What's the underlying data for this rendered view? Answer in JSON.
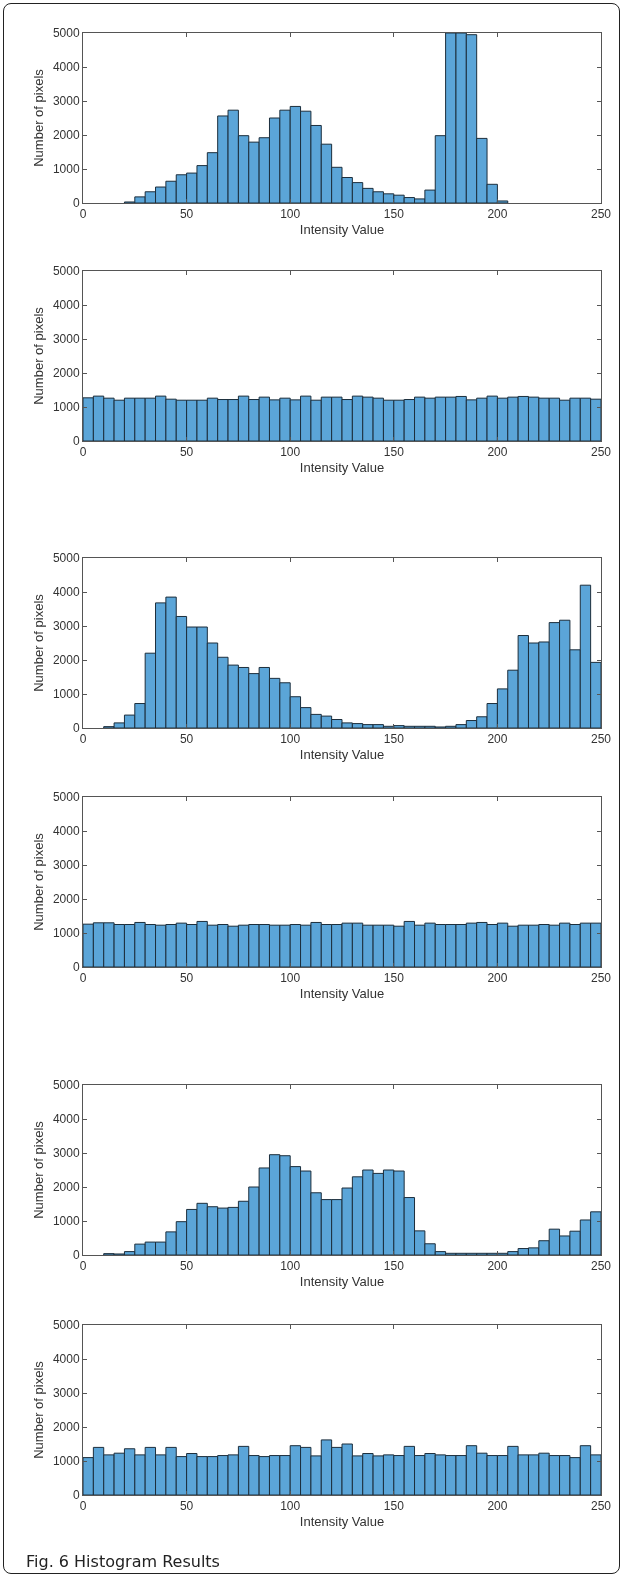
{
  "chart_data": [
    {
      "type": "histogram",
      "xlabel": "Intensity Value",
      "ylabel": "Number of pixels",
      "color": "#5ba5d8",
      "xlim": [
        0,
        250
      ],
      "xticks": [
        0,
        50,
        100,
        150,
        200,
        250
      ],
      "ylim": [
        0,
        5000
      ],
      "yticks": [
        0,
        1000,
        2000,
        3000,
        4000,
        5000
      ],
      "grid": false,
      "bins": [
        0,
        5,
        10,
        15,
        20,
        25,
        30,
        35,
        40,
        45,
        50,
        55,
        60,
        65,
        70,
        75,
        80,
        85,
        90,
        95,
        100,
        105,
        110,
        115,
        120,
        125,
        130,
        135,
        140,
        145,
        150,
        155,
        160,
        165,
        170,
        175,
        180,
        185,
        190,
        195,
        200,
        205,
        210,
        215,
        220,
        225,
        230,
        235,
        240,
        245,
        250
      ],
      "values": [
        0,
        0,
        0,
        0,
        30,
        180,
        330,
        470,
        640,
        830,
        880,
        1100,
        1480,
        2560,
        2730,
        1980,
        1790,
        1920,
        2500,
        2730,
        2840,
        2700,
        2280,
        1730,
        1050,
        750,
        600,
        430,
        330,
        270,
        230,
        160,
        120,
        380,
        1980,
        5000,
        5000,
        4950,
        1900,
        550,
        60,
        0,
        0,
        0,
        0,
        0,
        0,
        0,
        0,
        0
      ]
    },
    {
      "type": "histogram",
      "xlabel": "Intensity Value",
      "ylabel": "Number of pixels",
      "color": "#5ba5d8",
      "xlim": [
        0,
        250
      ],
      "xticks": [
        0,
        50,
        100,
        150,
        200,
        250
      ],
      "ylim": [
        0,
        5000
      ],
      "yticks": [
        0,
        1000,
        2000,
        3000,
        4000,
        5000
      ],
      "grid": false,
      "bins": [
        0,
        5,
        10,
        15,
        20,
        25,
        30,
        35,
        40,
        45,
        50,
        55,
        60,
        65,
        70,
        75,
        80,
        85,
        90,
        95,
        100,
        105,
        110,
        115,
        120,
        125,
        130,
        135,
        140,
        145,
        150,
        155,
        160,
        165,
        170,
        175,
        180,
        185,
        190,
        195,
        200,
        205,
        210,
        215,
        220,
        225,
        230,
        235,
        240,
        245,
        250
      ],
      "values": [
        1270,
        1320,
        1260,
        1200,
        1260,
        1260,
        1260,
        1320,
        1230,
        1200,
        1200,
        1200,
        1260,
        1220,
        1220,
        1320,
        1220,
        1290,
        1210,
        1260,
        1210,
        1320,
        1200,
        1290,
        1290,
        1220,
        1320,
        1290,
        1260,
        1200,
        1200,
        1220,
        1290,
        1260,
        1290,
        1290,
        1310,
        1210,
        1260,
        1320,
        1260,
        1290,
        1310,
        1290,
        1260,
        1260,
        1200,
        1260,
        1260,
        1230
      ]
    },
    {
      "type": "histogram",
      "xlabel": "Intensity Value",
      "ylabel": "Number of pixels",
      "color": "#5ba5d8",
      "xlim": [
        0,
        250
      ],
      "xticks": [
        0,
        50,
        100,
        150,
        200,
        250
      ],
      "ylim": [
        0,
        5000
      ],
      "yticks": [
        0,
        1000,
        2000,
        3000,
        4000,
        5000
      ],
      "grid": false,
      "bins": [
        0,
        5,
        10,
        15,
        20,
        25,
        30,
        35,
        40,
        45,
        50,
        55,
        60,
        65,
        70,
        75,
        80,
        85,
        90,
        95,
        100,
        105,
        110,
        115,
        120,
        125,
        130,
        135,
        140,
        145,
        150,
        155,
        160,
        165,
        170,
        175,
        180,
        185,
        190,
        195,
        200,
        205,
        210,
        215,
        220,
        225,
        230,
        235,
        240,
        245,
        250
      ],
      "values": [
        0,
        0,
        40,
        150,
        380,
        720,
        2200,
        3680,
        3850,
        3280,
        2970,
        2970,
        2500,
        2080,
        1850,
        1780,
        1600,
        1780,
        1460,
        1330,
        920,
        600,
        400,
        350,
        250,
        150,
        130,
        100,
        100,
        50,
        70,
        50,
        50,
        50,
        30,
        50,
        100,
        220,
        330,
        720,
        1150,
        1700,
        2720,
        2500,
        2530,
        3100,
        3170,
        2300,
        4200,
        1930
      ]
    },
    {
      "type": "histogram",
      "xlabel": "Intensity Value",
      "ylabel": "Number of pixels",
      "color": "#5ba5d8",
      "xlim": [
        0,
        250
      ],
      "xticks": [
        0,
        50,
        100,
        150,
        200,
        250
      ],
      "ylim": [
        0,
        5000
      ],
      "yticks": [
        0,
        1000,
        2000,
        3000,
        4000,
        5000
      ],
      "grid": false,
      "bins": [
        0,
        5,
        10,
        15,
        20,
        25,
        30,
        35,
        40,
        45,
        50,
        55,
        60,
        65,
        70,
        75,
        80,
        85,
        90,
        95,
        100,
        105,
        110,
        115,
        120,
        125,
        130,
        135,
        140,
        145,
        150,
        155,
        160,
        165,
        170,
        175,
        180,
        185,
        190,
        195,
        200,
        205,
        210,
        215,
        220,
        225,
        230,
        235,
        240,
        245,
        250
      ],
      "values": [
        1260,
        1300,
        1300,
        1250,
        1250,
        1310,
        1250,
        1230,
        1250,
        1290,
        1250,
        1340,
        1230,
        1250,
        1200,
        1230,
        1250,
        1250,
        1230,
        1230,
        1250,
        1230,
        1310,
        1250,
        1250,
        1290,
        1290,
        1230,
        1230,
        1230,
        1200,
        1340,
        1230,
        1290,
        1250,
        1250,
        1250,
        1290,
        1310,
        1250,
        1290,
        1200,
        1230,
        1230,
        1250,
        1230,
        1290,
        1250,
        1290,
        1290
      ]
    },
    {
      "type": "histogram",
      "xlabel": "Intensity Value",
      "ylabel": "Number of pixels",
      "color": "#5ba5d8",
      "xlim": [
        0,
        250
      ],
      "xticks": [
        0,
        50,
        100,
        150,
        200,
        250
      ],
      "ylim": [
        0,
        5000
      ],
      "yticks": [
        0,
        1000,
        2000,
        3000,
        4000,
        5000
      ],
      "grid": false,
      "bins": [
        0,
        5,
        10,
        15,
        20,
        25,
        30,
        35,
        40,
        45,
        50,
        55,
        60,
        65,
        70,
        75,
        80,
        85,
        90,
        95,
        100,
        105,
        110,
        115,
        120,
        125,
        130,
        135,
        140,
        145,
        150,
        155,
        160,
        165,
        170,
        175,
        180,
        185,
        190,
        195,
        200,
        205,
        210,
        215,
        220,
        225,
        230,
        235,
        240,
        245,
        250
      ],
      "values": [
        0,
        0,
        40,
        30,
        100,
        320,
        380,
        380,
        680,
        980,
        1340,
        1520,
        1420,
        1380,
        1400,
        1580,
        2000,
        2560,
        2950,
        2920,
        2600,
        2470,
        1830,
        1630,
        1630,
        1970,
        2300,
        2500,
        2400,
        2500,
        2470,
        1690,
        710,
        330,
        100,
        50,
        50,
        50,
        50,
        50,
        50,
        100,
        190,
        210,
        420,
        760,
        560,
        700,
        1030,
        1270
      ]
    },
    {
      "type": "histogram",
      "xlabel": "Intensity Value",
      "ylabel": "Number of pixels",
      "color": "#5ba5d8",
      "xlim": [
        0,
        250
      ],
      "xticks": [
        0,
        50,
        100,
        150,
        200,
        250
      ],
      "ylim": [
        0,
        5000
      ],
      "yticks": [
        0,
        1000,
        2000,
        3000,
        4000,
        5000
      ],
      "grid": false,
      "bins": [
        0,
        5,
        10,
        15,
        20,
        25,
        30,
        35,
        40,
        45,
        50,
        55,
        60,
        65,
        70,
        75,
        80,
        85,
        90,
        95,
        100,
        105,
        110,
        115,
        120,
        125,
        130,
        135,
        140,
        145,
        150,
        155,
        160,
        165,
        170,
        175,
        180,
        185,
        190,
        195,
        200,
        205,
        210,
        215,
        220,
        225,
        230,
        235,
        240,
        245,
        250
      ],
      "values": [
        1100,
        1400,
        1180,
        1230,
        1360,
        1180,
        1400,
        1180,
        1400,
        1130,
        1220,
        1130,
        1130,
        1160,
        1180,
        1430,
        1160,
        1130,
        1160,
        1160,
        1450,
        1400,
        1150,
        1620,
        1400,
        1500,
        1150,
        1220,
        1150,
        1180,
        1160,
        1430,
        1160,
        1220,
        1180,
        1160,
        1160,
        1450,
        1230,
        1160,
        1160,
        1430,
        1180,
        1180,
        1230,
        1160,
        1160,
        1100,
        1450,
        1180
      ],
      "annotations": [
        "Fig. 6 Histogram Results"
      ]
    }
  ]
}
